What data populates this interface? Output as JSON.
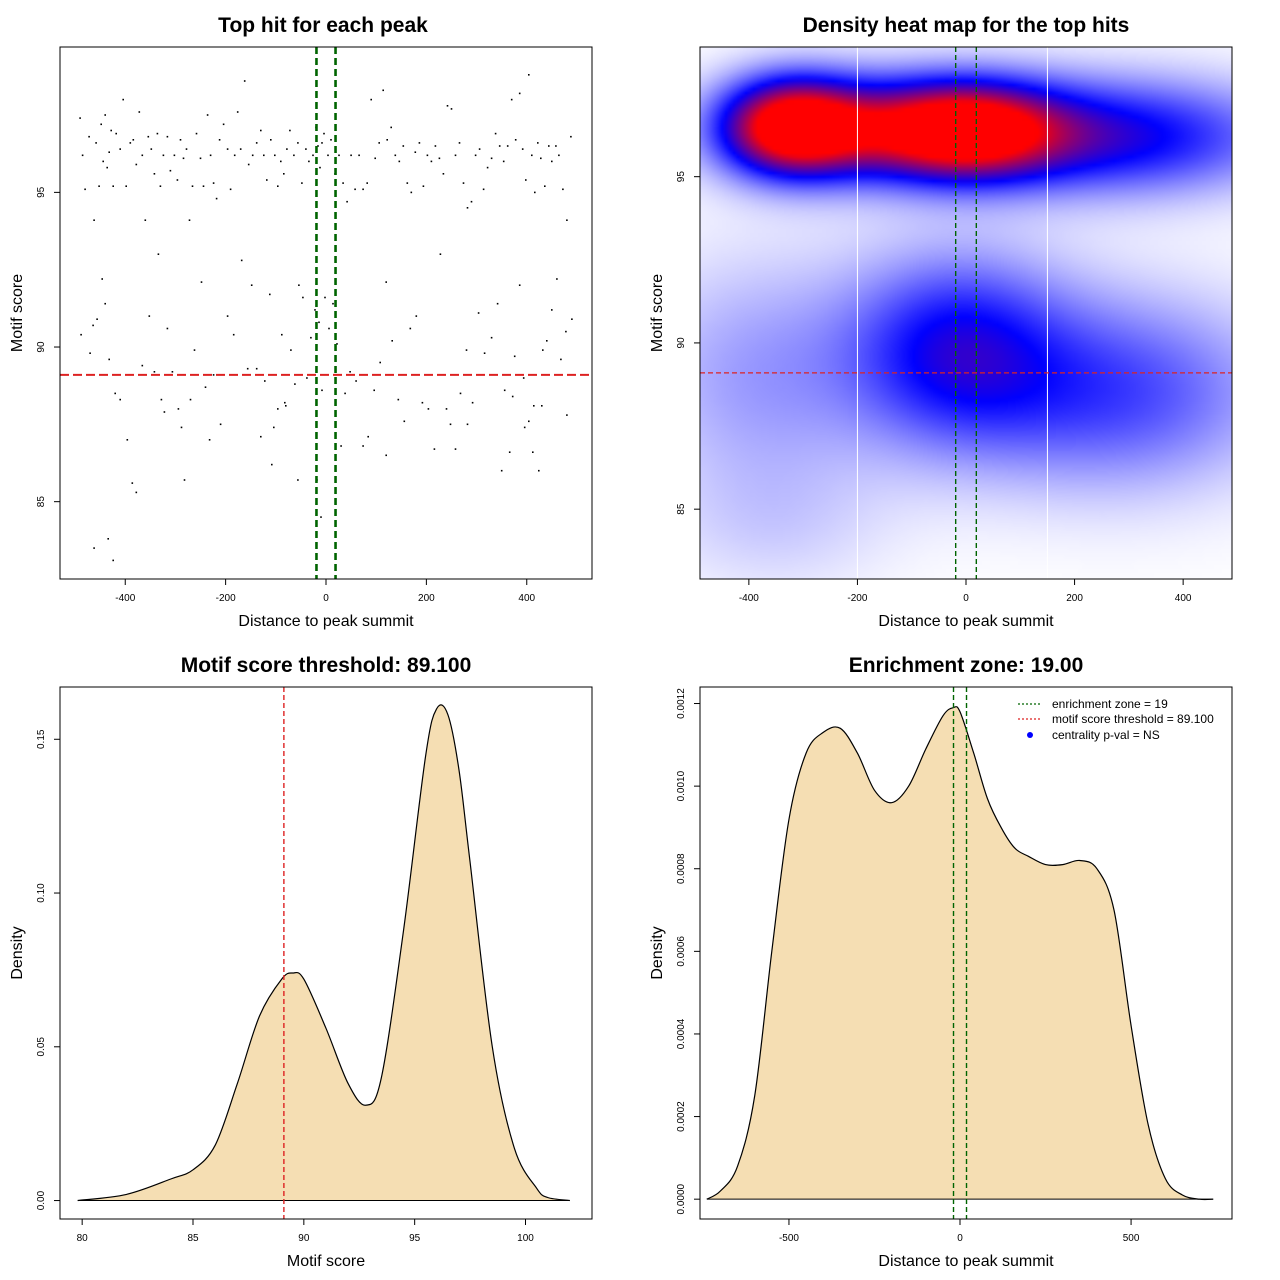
{
  "chart_data": [
    {
      "type": "scatter",
      "title": "Top hit for each peak",
      "xlabel": "Distance to peak summit",
      "ylabel": "Motif score",
      "xlim": [
        -530,
        530
      ],
      "ylim": [
        82.5,
        99.7
      ],
      "xticks": [
        -400,
        -200,
        0,
        200,
        400
      ],
      "yticks": [
        85,
        90,
        95
      ],
      "xtick_labels": [
        "-400",
        "-200",
        "0",
        "200",
        "400"
      ],
      "ytick_labels": [
        "85",
        "90",
        "95"
      ],
      "vlines": [
        -19,
        19
      ],
      "vline_color": "#006400",
      "hline": 89.1,
      "hline_color": "#dd2222",
      "points": [
        [
          -490,
          97.4
        ],
        [
          -485,
          96.2
        ],
        [
          -480,
          95.1
        ],
        [
          -472,
          96.8
        ],
        [
          -462,
          94.1
        ],
        [
          -458,
          96.6
        ],
        [
          -452,
          95.2
        ],
        [
          -448,
          97.2
        ],
        [
          -444,
          96.0
        ],
        [
          -440,
          97.5
        ],
        [
          -436,
          95.8
        ],
        [
          -432,
          96.3
        ],
        [
          -428,
          97.0
        ],
        [
          -424,
          95.2
        ],
        [
          -418,
          96.9
        ],
        [
          -410,
          96.4
        ],
        [
          -404,
          98.0
        ],
        [
          -398,
          95.2
        ],
        [
          -390,
          96.6
        ],
        [
          -384,
          96.7
        ],
        [
          -378,
          95.9
        ],
        [
          -372,
          97.6
        ],
        [
          -366,
          96.2
        ],
        [
          -360,
          94.1
        ],
        [
          -354,
          96.8
        ],
        [
          -348,
          96.4
        ],
        [
          -342,
          95.6
        ],
        [
          -336,
          96.9
        ],
        [
          -330,
          95.2
        ],
        [
          -324,
          96.2
        ],
        [
          -316,
          96.8
        ],
        [
          -310,
          95.7
        ],
        [
          -302,
          96.2
        ],
        [
          -296,
          95.4
        ],
        [
          -290,
          96.7
        ],
        [
          -284,
          96.1
        ],
        [
          -278,
          96.4
        ],
        [
          -272,
          94.1
        ],
        [
          -266,
          95.2
        ],
        [
          -258,
          96.9
        ],
        [
          -250,
          96.1
        ],
        [
          -244,
          95.2
        ],
        [
          -236,
          97.5
        ],
        [
          -230,
          96.2
        ],
        [
          -224,
          95.3
        ],
        [
          -218,
          94.8
        ],
        [
          -212,
          96.7
        ],
        [
          -204,
          97.2
        ],
        [
          -196,
          96.4
        ],
        [
          -190,
          95.1
        ],
        [
          -182,
          96.2
        ],
        [
          -176,
          97.6
        ],
        [
          -170,
          96.4
        ],
        [
          -162,
          98.6
        ],
        [
          -154,
          95.9
        ],
        [
          -146,
          96.2
        ],
        [
          -138,
          96.6
        ],
        [
          -130,
          97.0
        ],
        [
          -124,
          96.2
        ],
        [
          -118,
          95.4
        ],
        [
          -110,
          96.7
        ],
        [
          -102,
          96.2
        ],
        [
          -96,
          95.2
        ],
        [
          -90,
          96.0
        ],
        [
          -84,
          95.6
        ],
        [
          -78,
          96.4
        ],
        [
          -72,
          97.0
        ],
        [
          -64,
          96.2
        ],
        [
          -56,
          96.6
        ],
        [
          -48,
          95.3
        ],
        [
          -40,
          96.4
        ],
        [
          -34,
          96.0
        ],
        [
          -26,
          96.2
        ],
        [
          -20,
          97.1
        ],
        [
          -16,
          96.5
        ],
        [
          -12,
          95.8
        ],
        [
          -8,
          96.6
        ],
        [
          -4,
          96.9
        ],
        [
          4,
          96.2
        ],
        [
          10,
          96.7
        ],
        [
          18,
          95.6
        ],
        [
          26,
          96.2
        ],
        [
          34,
          95.3
        ],
        [
          42,
          94.7
        ],
        [
          50,
          96.2
        ],
        [
          58,
          95.1
        ],
        [
          66,
          96.2
        ],
        [
          74,
          95.1
        ],
        [
          82,
          95.3
        ],
        [
          90,
          98.0
        ],
        [
          98,
          96.1
        ],
        [
          106,
          96.6
        ],
        [
          114,
          98.3
        ],
        [
          122,
          96.7
        ],
        [
          130,
          97.1
        ],
        [
          138,
          96.2
        ],
        [
          146,
          96.0
        ],
        [
          154,
          96.5
        ],
        [
          162,
          95.3
        ],
        [
          170,
          95.0
        ],
        [
          178,
          96.3
        ],
        [
          186,
          96.6
        ],
        [
          194,
          95.2
        ],
        [
          202,
          96.2
        ],
        [
          210,
          96.0
        ],
        [
          218,
          96.5
        ],
        [
          226,
          96.1
        ],
        [
          234,
          95.6
        ],
        [
          242,
          97.8
        ],
        [
          250,
          97.7
        ],
        [
          258,
          96.2
        ],
        [
          266,
          96.6
        ],
        [
          274,
          95.3
        ],
        [
          282,
          94.5
        ],
        [
          290,
          94.7
        ],
        [
          298,
          96.2
        ],
        [
          306,
          96.4
        ],
        [
          314,
          95.1
        ],
        [
          322,
          95.8
        ],
        [
          330,
          96.1
        ],
        [
          338,
          96.9
        ],
        [
          346,
          96.5
        ],
        [
          354,
          96.0
        ],
        [
          362,
          96.5
        ],
        [
          370,
          98.0
        ],
        [
          378,
          96.7
        ],
        [
          386,
          98.2
        ],
        [
          392,
          96.4
        ],
        [
          398,
          95.4
        ],
        [
          404,
          98.8
        ],
        [
          410,
          96.2
        ],
        [
          416,
          95.0
        ],
        [
          422,
          96.6
        ],
        [
          428,
          96.1
        ],
        [
          436,
          95.2
        ],
        [
          444,
          96.5
        ],
        [
          450,
          96.0
        ],
        [
          458,
          96.5
        ],
        [
          464,
          96.2
        ],
        [
          472,
          95.1
        ],
        [
          480,
          94.1
        ],
        [
          488,
          96.8
        ],
        [
          -488,
          90.4
        ],
        [
          -470,
          89.8
        ],
        [
          -464,
          90.7
        ],
        [
          -456,
          90.9
        ],
        [
          -446,
          92.2
        ],
        [
          -440,
          91.4
        ],
        [
          -432,
          89.6
        ],
        [
          -420,
          88.5
        ],
        [
          -410,
          88.3
        ],
        [
          -396,
          87.0
        ],
        [
          -386,
          85.6
        ],
        [
          -378,
          85.3
        ],
        [
          -366,
          89.4
        ],
        [
          -352,
          91.0
        ],
        [
          -342,
          89.2
        ],
        [
          -334,
          93.0
        ],
        [
          -328,
          88.3
        ],
        [
          -322,
          87.9
        ],
        [
          -316,
          90.6
        ],
        [
          -306,
          89.2
        ],
        [
          -294,
          88.0
        ],
        [
          -288,
          87.4
        ],
        [
          -282,
          85.7
        ],
        [
          -270,
          88.3
        ],
        [
          -262,
          89.9
        ],
        [
          -248,
          92.1
        ],
        [
          -240,
          88.7
        ],
        [
          -232,
          87.0
        ],
        [
          -224,
          89.1
        ],
        [
          -210,
          87.5
        ],
        [
          -196,
          91.0
        ],
        [
          -184,
          90.4
        ],
        [
          -168,
          92.8
        ],
        [
          -156,
          89.3
        ],
        [
          -148,
          92.0
        ],
        [
          -138,
          89.3
        ],
        [
          -130,
          87.1
        ],
        [
          -122,
          88.9
        ],
        [
          -112,
          91.7
        ],
        [
          -104,
          87.4
        ],
        [
          -96,
          88.0
        ],
        [
          -88,
          90.4
        ],
        [
          -80,
          88.1
        ],
        [
          -70,
          89.9
        ],
        [
          -62,
          88.8
        ],
        [
          -54,
          92.0
        ],
        [
          -46,
          91.6
        ],
        [
          -38,
          89.0
        ],
        [
          -30,
          90.3
        ],
        [
          -22,
          91.2
        ],
        [
          -14,
          90.8
        ],
        [
          -8,
          88.6
        ],
        [
          -2,
          91.6
        ],
        [
          6,
          90.6
        ],
        [
          14,
          91.4
        ],
        [
          22,
          90.1
        ],
        [
          30,
          86.8
        ],
        [
          38,
          88.5
        ],
        [
          48,
          89.2
        ],
        [
          60,
          88.9
        ],
        [
          74,
          86.8
        ],
        [
          84,
          87.1
        ],
        [
          96,
          88.6
        ],
        [
          108,
          89.5
        ],
        [
          120,
          92.1
        ],
        [
          132,
          90.2
        ],
        [
          144,
          88.3
        ],
        [
          156,
          87.6
        ],
        [
          168,
          90.6
        ],
        [
          180,
          91.0
        ],
        [
          192,
          88.2
        ],
        [
          204,
          88.0
        ],
        [
          216,
          86.7
        ],
        [
          228,
          93.0
        ],
        [
          240,
          88.0
        ],
        [
          248,
          87.5
        ],
        [
          258,
          86.7
        ],
        [
          268,
          88.5
        ],
        [
          280,
          89.9
        ],
        [
          292,
          88.2
        ],
        [
          304,
          91.1
        ],
        [
          316,
          89.8
        ],
        [
          330,
          90.3
        ],
        [
          342,
          91.4
        ],
        [
          356,
          88.6
        ],
        [
          366,
          86.6
        ],
        [
          376,
          89.7
        ],
        [
          386,
          92.0
        ],
        [
          394,
          89.0
        ],
        [
          404,
          87.6
        ],
        [
          414,
          88.1
        ],
        [
          424,
          86.0
        ],
        [
          432,
          89.9
        ],
        [
          440,
          90.2
        ],
        [
          450,
          91.2
        ],
        [
          460,
          92.2
        ],
        [
          468,
          89.6
        ],
        [
          478,
          90.5
        ],
        [
          490,
          90.9
        ],
        [
          -462,
          83.5
        ],
        [
          -434,
          83.8
        ],
        [
          -424,
          83.1
        ],
        [
          -18,
          85.7
        ],
        [
          -10,
          84.5
        ],
        [
          -108,
          86.2
        ],
        [
          -56,
          85.7
        ],
        [
          -82,
          88.2
        ],
        [
          120,
          86.5
        ],
        [
          282,
          87.5
        ],
        [
          350,
          86.0
        ],
        [
          372,
          88.4
        ],
        [
          396,
          87.4
        ],
        [
          412,
          86.6
        ],
        [
          430,
          88.1
        ],
        [
          480,
          87.8
        ]
      ]
    },
    {
      "type": "heatmap",
      "title": "Density heat map for the top hits",
      "xlabel": "Distance to peak summit",
      "ylabel": "Motif score",
      "xlim": [
        -490,
        490
      ],
      "ylim": [
        82.9,
        98.9
      ],
      "xticks": [
        -400,
        -200,
        0,
        200,
        400
      ],
      "yticks": [
        85,
        90,
        95
      ],
      "xtick_labels": [
        "-400",
        "-200",
        "0",
        "200",
        "400"
      ],
      "ytick_labels": [
        "85",
        "90",
        "95"
      ],
      "vlines_white": [
        -200,
        150
      ],
      "vlines": [
        -19,
        19
      ],
      "vline_color": "#006400",
      "hline": 89.1,
      "hline_color": "#dd2222",
      "colors": [
        "#ffffff",
        "#0000ff",
        "#ff0000"
      ],
      "kernels": [
        {
          "x": -320,
          "y": 96.5,
          "sx": 90,
          "sy": 1.0,
          "w": 1.05
        },
        {
          "x": -150,
          "y": 96.4,
          "sx": 180,
          "sy": 1.1,
          "w": 0.55
        },
        {
          "x": 0,
          "y": 96.4,
          "sx": 120,
          "sy": 1.0,
          "w": 0.85
        },
        {
          "x": 280,
          "y": 96.2,
          "sx": 210,
          "sy": 1.2,
          "w": 0.55
        },
        {
          "x": -20,
          "y": 89.8,
          "sx": 140,
          "sy": 2.0,
          "w": 0.5
        },
        {
          "x": 280,
          "y": 88.5,
          "sx": 200,
          "sy": 2.0,
          "w": 0.38
        },
        {
          "x": -380,
          "y": 89.0,
          "sx": 160,
          "sy": 2.5,
          "w": 0.2
        },
        {
          "x": -350,
          "y": 84.5,
          "sx": 150,
          "sy": 1.5,
          "w": 0.08
        }
      ]
    },
    {
      "type": "area",
      "title": "Motif score threshold: 89.100",
      "xlabel": "Motif score",
      "ylabel": "Density",
      "xlim": [
        79,
        103
      ],
      "ylim": [
        -0.006,
        0.167
      ],
      "xticks": [
        80,
        85,
        90,
        95,
        100
      ],
      "yticks": [
        0,
        0.05,
        0.1,
        0.15
      ],
      "xtick_labels": [
        "80",
        "85",
        "90",
        "95",
        "100"
      ],
      "ytick_labels": [
        "0.00",
        "0.05",
        "0.10",
        "0.15"
      ],
      "fill": "#f5deb3",
      "vline": 89.1,
      "vline_color": "#dd2222",
      "x": [
        79.8,
        82,
        84,
        85,
        86,
        87,
        88,
        89,
        89.5,
        90,
        91,
        92,
        92.8,
        93.5,
        94.5,
        95.5,
        96,
        96.5,
        97,
        97.5,
        98.5,
        99.5,
        100.5,
        101,
        102
      ],
      "y": [
        0,
        0.002,
        0.007,
        0.01,
        0.018,
        0.038,
        0.06,
        0.072,
        0.074,
        0.072,
        0.056,
        0.038,
        0.031,
        0.04,
        0.088,
        0.145,
        0.16,
        0.158,
        0.14,
        0.11,
        0.05,
        0.017,
        0.004,
        0.001,
        0
      ]
    },
    {
      "type": "area",
      "title": "Enrichment zone: 19.00",
      "xlabel": "Distance to peak summit",
      "ylabel": "Density",
      "xlim": [
        -760,
        795
      ],
      "ylim": [
        -4.8e-05,
        0.00124
      ],
      "xticks": [
        -500,
        0,
        500
      ],
      "yticks": [
        0,
        0.0002,
        0.0004,
        0.0006,
        0.0008,
        0.001,
        0.0012
      ],
      "xtick_labels": [
        "-500",
        "0",
        "500"
      ],
      "ytick_labels": [
        "0.0000",
        "0.0002",
        "0.0004",
        "0.0006",
        "0.0008",
        "0.0010",
        "0.0012"
      ],
      "fill": "#f5deb3",
      "vlines": [
        -19,
        19
      ],
      "vline_color": "#006400",
      "x": [
        -740,
        -700,
        -650,
        -600,
        -550,
        -500,
        -450,
        -400,
        -350,
        -300,
        -250,
        -200,
        -150,
        -100,
        -50,
        -20,
        0,
        40,
        80,
        120,
        160,
        200,
        250,
        300,
        350,
        400,
        450,
        500,
        550,
        600,
        650,
        700,
        740
      ],
      "y": [
        0,
        2e-05,
        8e-05,
        0.00025,
        0.0006,
        0.00092,
        0.00108,
        0.00113,
        0.00114,
        0.00108,
        0.00099,
        0.00096,
        0.001,
        0.00109,
        0.00117,
        0.00119,
        0.00118,
        0.00108,
        0.00097,
        0.0009,
        0.00085,
        0.00083,
        0.00081,
        0.00081,
        0.00082,
        0.0008,
        0.0007,
        0.00042,
        0.00018,
        5e-05,
        1e-05,
        0,
        0
      ]
    }
  ],
  "legend": {
    "items": [
      {
        "label": "enrichment zone = 19",
        "style": "dotted-line",
        "color": "#006400"
      },
      {
        "label": "motif score threshold = 89.100",
        "style": "dotted-line",
        "color": "#dd2222"
      },
      {
        "label": "centrality p-val = NS",
        "style": "dot",
        "color": "#0000ff"
      }
    ]
  }
}
